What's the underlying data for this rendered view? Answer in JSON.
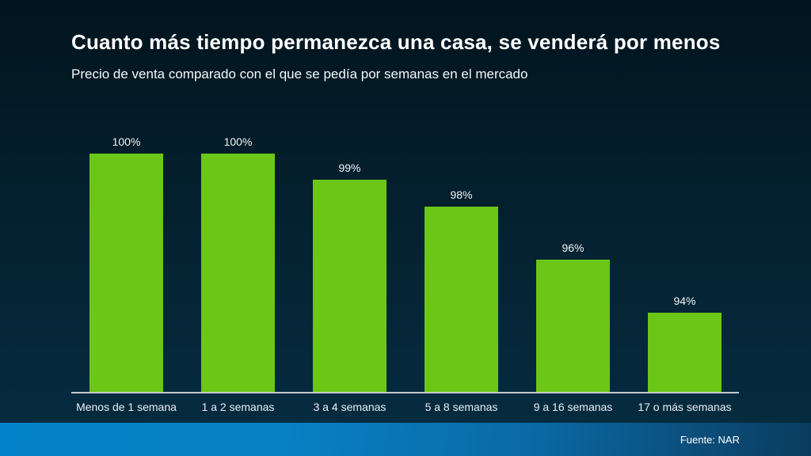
{
  "title": "Cuanto más tiempo permanezca una casa, se venderá por menos",
  "subtitle": "Precio de venta comparado con el que se pedía por semanas en el mercado",
  "source": "Fuente: NAR",
  "colors": {
    "bar_fill": "#6cc617",
    "background_top": "#02141e",
    "background_bottom": "#052b3f",
    "axis_line": "#c2cad0",
    "footer_gradient_left": "#0383c9",
    "footer_gradient_right": "#0a3c5e",
    "text": "#ffffff"
  },
  "chart_data": {
    "type": "bar",
    "title": "Cuanto más tiempo permanezca una casa, se venderá por menos",
    "subtitle": "Precio de venta comparado con el que se pedía por semanas en el mercado",
    "categories": [
      "Menos de 1 semana",
      "1 a 2 semanas",
      "3 a 4 semanas",
      "5 a 8 semanas",
      "9 a 16 semanas",
      "17 o más semanas"
    ],
    "values": [
      100,
      100,
      99,
      98,
      96,
      94
    ],
    "value_labels": [
      "100%",
      "100%",
      "99%",
      "98%",
      "96%",
      "94%"
    ],
    "xlabel": "",
    "ylabel": "",
    "ylim": [
      91,
      100
    ],
    "grid": false,
    "legend": false,
    "bar_color": "#6cc617",
    "source": "Fuente: NAR"
  }
}
